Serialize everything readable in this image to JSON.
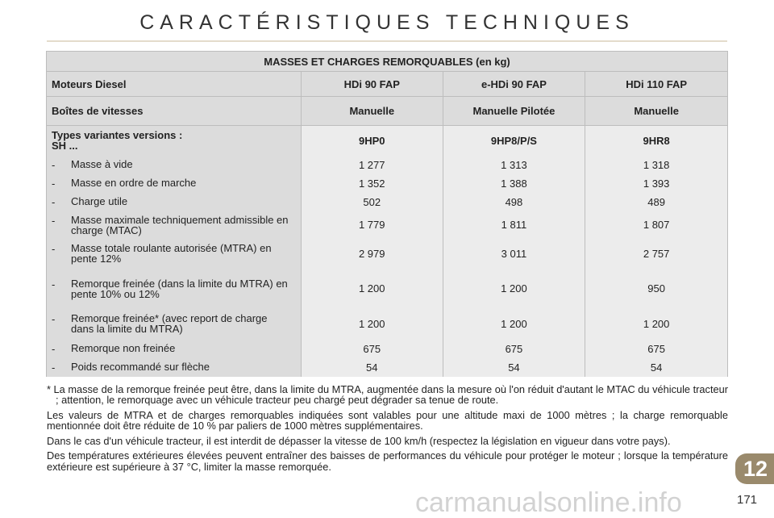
{
  "title": "CARACTÉRISTIQUES TECHNIQUES",
  "table": {
    "caption": "MASSES ET CHARGES REMORQUABLES (en kg)",
    "engines_label": "Moteurs Diesel",
    "engines": [
      "HDi 90 FAP",
      "e-HDi 90 FAP",
      "HDi 110 FAP"
    ],
    "gearbox_label": "Boîtes de vitesses",
    "gearboxes": [
      "Manuelle",
      "Manuelle Pilotée",
      "Manuelle"
    ],
    "types_label": "Types variantes versions :",
    "types_label2": "SH ...",
    "types": [
      "9HP0",
      "9HP8/P/S",
      "9HR8"
    ],
    "rows": [
      {
        "label": "Masse à vide",
        "values": [
          "1 277",
          "1 313",
          "1 318"
        ]
      },
      {
        "label": "Masse en ordre de marche",
        "values": [
          "1 352",
          "1 388",
          "1 393"
        ]
      },
      {
        "label": "Charge utile",
        "values": [
          "502",
          "498",
          "489"
        ]
      },
      {
        "label": "Masse maximale techniquement admissible en charge (MTAC)",
        "values": [
          "1 779",
          "1 811",
          "1 807"
        ]
      },
      {
        "label": "Masse totale roulante autorisée (MTRA) en pente 12%",
        "values": [
          "2 979",
          "3 011",
          "2 757"
        ]
      },
      {
        "label": "Remorque freinée (dans la limite du MTRA) en pente 10% ou 12%",
        "values": [
          "1 200",
          "1 200",
          "950"
        ]
      },
      {
        "label": "Remorque freinée* (avec report de charge dans la limite du MTRA)",
        "values": [
          "1 200",
          "1 200",
          "1 200"
        ]
      },
      {
        "label": "Remorque non freinée",
        "values": [
          "675",
          "675",
          "675"
        ]
      },
      {
        "label": "Poids recommandé sur flèche",
        "values": [
          "54",
          "54",
          "54"
        ]
      }
    ]
  },
  "notes": [
    "* La masse de la remorque freinée peut être, dans la limite du MTRA, augmentée dans la mesure où l'on réduit d'autant le MTAC du véhicule tracteur ; attention, le remorquage avec un véhicule tracteur peu chargé peut dégrader sa tenue de route.",
    "Les valeurs de MTRA et de charges remorquables indiquées sont valables pour une altitude maxi de 1000 mètres ; la charge remorquable mentionnée doit être réduite de 10 % par paliers de 1000 mètres supplémentaires.",
    "Dans le cas d'un véhicule tracteur, il est interdit de dépasser la vitesse de 100 km/h (respectez la législation en vigueur dans votre pays).",
    "Des températures extérieures élevées peuvent entraîner des baisses de performances du véhicule pour protéger le moteur ; lorsque la température extérieure est supérieure à 37 °C, limiter la masse remorquée."
  ],
  "chapter": "12",
  "page_number": "171",
  "watermark": "carmanualsonline.info",
  "colors": {
    "chapter_tab": "#9a8a6c",
    "header_bg": "#dcdcdc",
    "body_bg": "#ececec"
  }
}
